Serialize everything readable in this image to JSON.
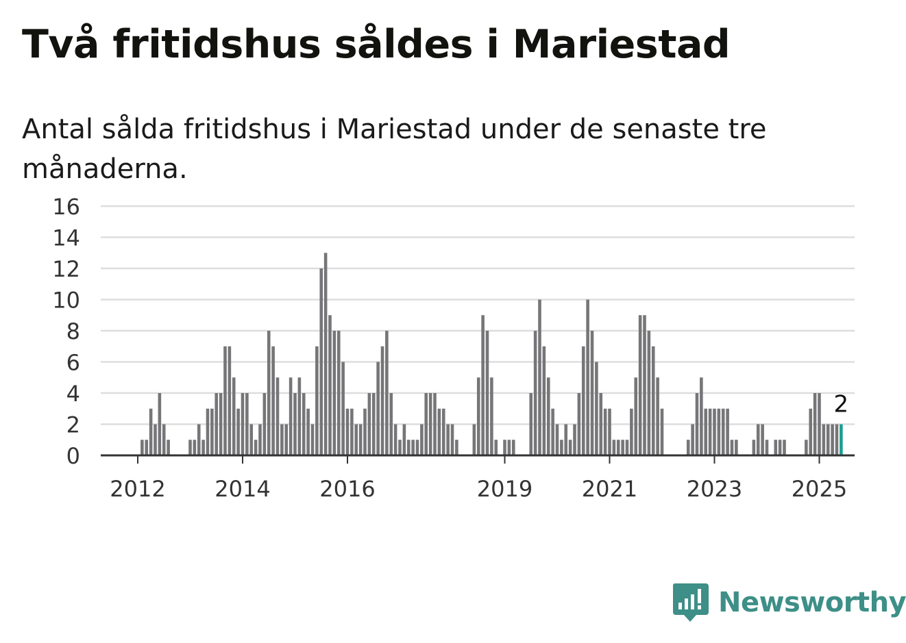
{
  "title": "Två fritidshus såldes i Mariestad",
  "subtitle": "Antal sålda fritidshus i Mariestad under de senaste tre månaderna.",
  "colors": {
    "bar": "#767578",
    "highlight": "#1a9e93",
    "grid": "#dddddd",
    "axis": "#333333",
    "brand": "#3d8f87"
  },
  "logo": {
    "text": "Newsworthy",
    "icon": "bar-chart-speech-bubble-icon"
  },
  "chart_data": {
    "type": "bar",
    "title": "Två fritidshus såldes i Mariestad",
    "subtitle": "Antal sålda fritidshus i Mariestad under de senaste tre månaderna.",
    "xlabel": "",
    "ylabel": "",
    "ylim": [
      0,
      16
    ],
    "y_ticks": [
      0,
      2,
      4,
      6,
      8,
      10,
      12,
      14,
      16
    ],
    "x_tick_labels": [
      "2012",
      "2014",
      "2016",
      "2019",
      "2021",
      "2023",
      "2025"
    ],
    "x_tick_positions": [
      2012,
      2014,
      2016,
      2019,
      2021,
      2023,
      2025
    ],
    "x_start": 2011.25,
    "grid": "horizontal",
    "highlight_last": true,
    "last_label": "2",
    "interval_years": 0.0833333,
    "values": [
      0,
      0,
      0,
      0,
      0,
      0,
      0,
      0,
      0,
      0,
      1,
      1,
      3,
      2,
      4,
      2,
      1,
      0,
      0,
      0,
      0,
      1,
      1,
      2,
      1,
      3,
      3,
      4,
      4,
      7,
      7,
      5,
      3,
      4,
      4,
      2,
      1,
      2,
      4,
      8,
      7,
      5,
      2,
      2,
      5,
      4,
      5,
      4,
      3,
      2,
      7,
      12,
      13,
      9,
      8,
      8,
      6,
      3,
      3,
      2,
      2,
      3,
      4,
      4,
      6,
      7,
      8,
      4,
      2,
      1,
      2,
      1,
      1,
      1,
      2,
      4,
      4,
      4,
      3,
      3,
      2,
      2,
      1,
      0,
      0,
      0,
      2,
      5,
      9,
      8,
      5,
      1,
      0,
      1,
      1,
      1,
      0,
      0,
      0,
      4,
      8,
      10,
      7,
      5,
      3,
      2,
      1,
      2,
      1,
      2,
      4,
      7,
      10,
      8,
      6,
      4,
      3,
      3,
      1,
      1,
      1,
      1,
      3,
      5,
      9,
      9,
      8,
      7,
      5,
      3,
      0,
      0,
      0,
      0,
      0,
      1,
      2,
      4,
      5,
      3,
      3,
      3,
      3,
      3,
      3,
      1,
      1,
      0,
      0,
      0,
      1,
      2,
      2,
      1,
      0,
      1,
      1,
      1,
      0,
      0,
      0,
      0,
      1,
      3,
      4,
      4,
      2,
      2,
      2,
      2,
      2
    ]
  }
}
